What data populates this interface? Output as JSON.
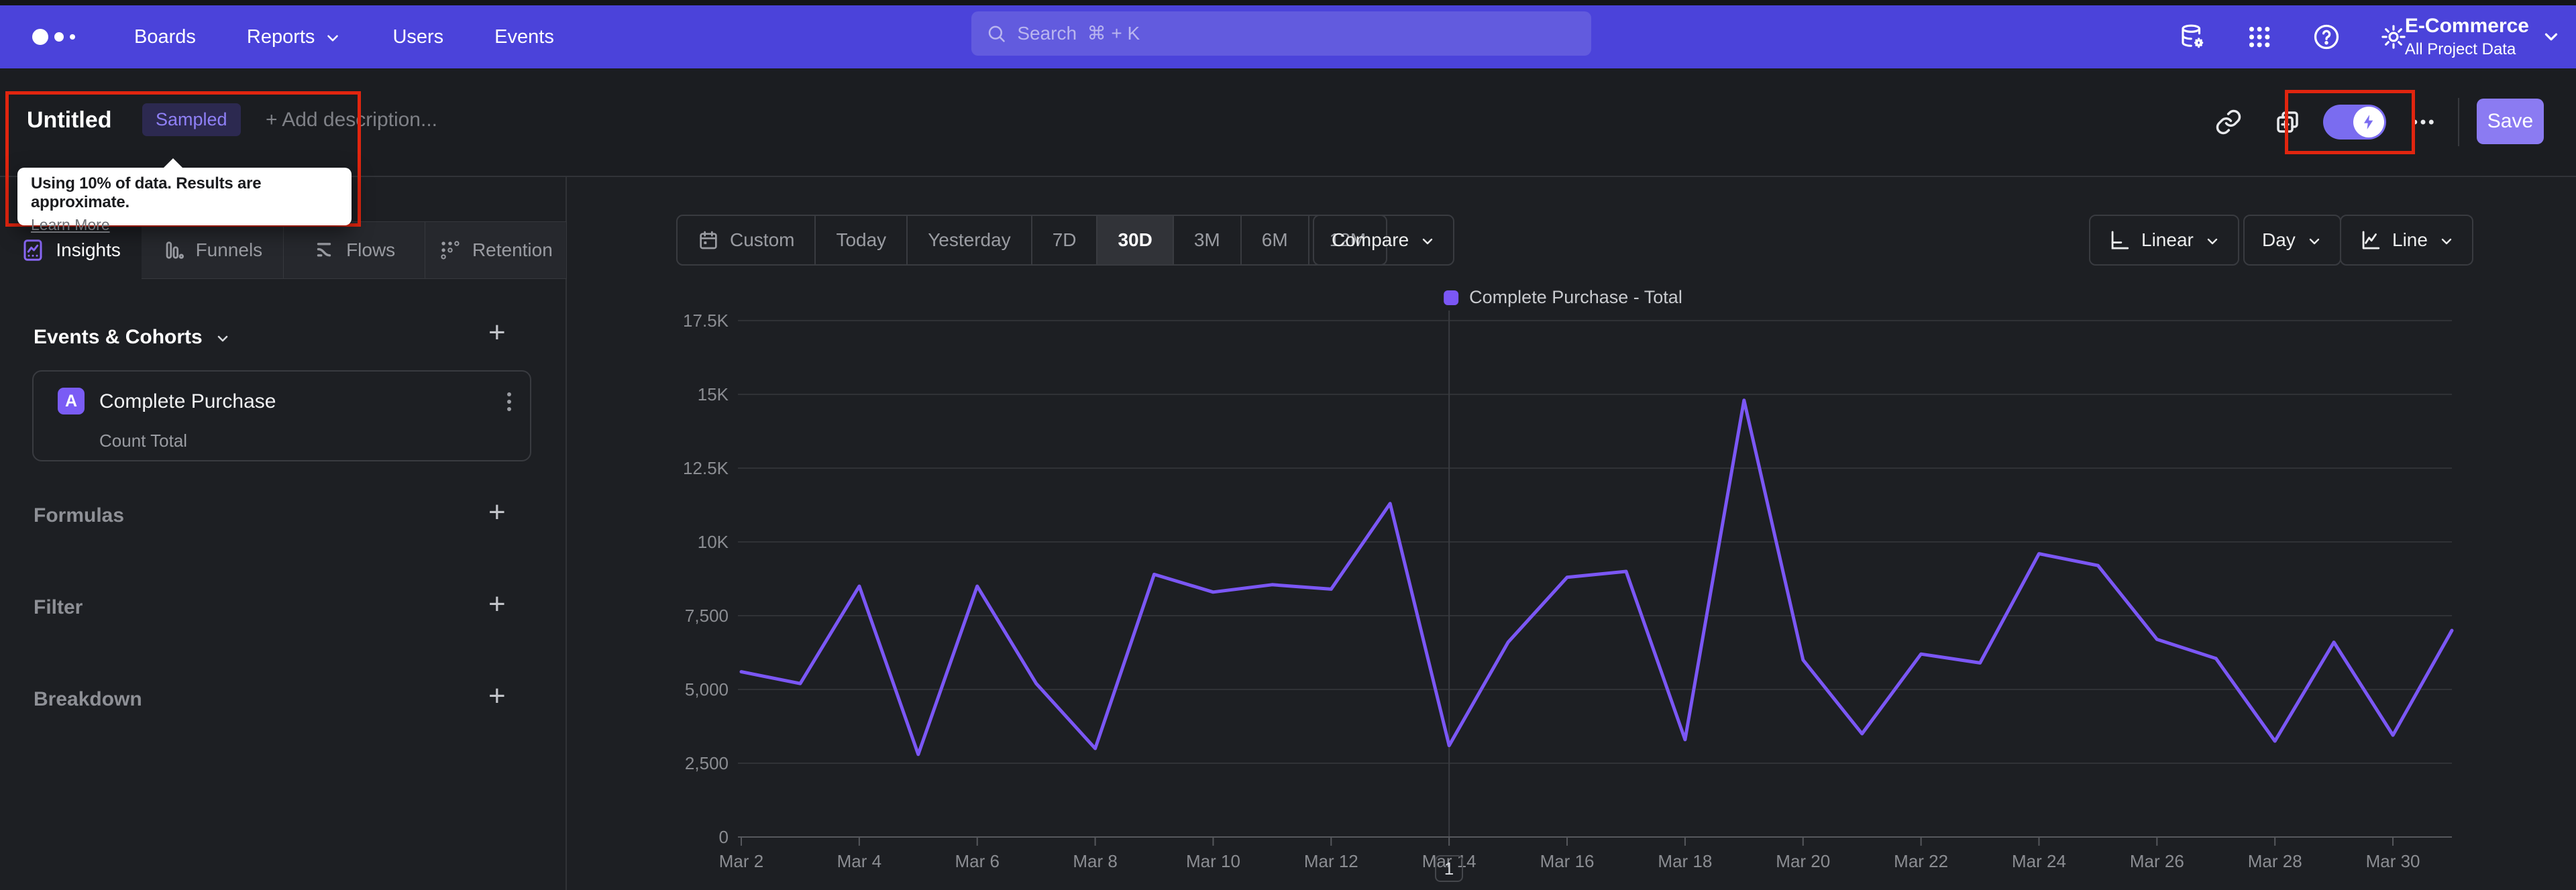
{
  "nav": {
    "items": [
      "Boards",
      "Reports",
      "Users",
      "Events"
    ],
    "search_placeholder": "Search  ⌘ + K",
    "org": {
      "name": "E-Commerce",
      "project": "All Project Data"
    }
  },
  "titlebar": {
    "title": "Untitled",
    "badge": "Sampled",
    "add_description": "+ Add description...",
    "save_label": "Save",
    "tooltip": {
      "text": "Using 10% of data. Results are approximate.",
      "link": "Learn More"
    }
  },
  "sidebar": {
    "tabs": [
      {
        "label": "Insights",
        "active": true
      },
      {
        "label": "Funnels",
        "active": false
      },
      {
        "label": "Flows",
        "active": false
      },
      {
        "label": "Retention",
        "active": false
      }
    ],
    "events_header": "Events & Cohorts",
    "event_card": {
      "letter": "A",
      "name": "Complete Purchase",
      "metric": "Count Total"
    },
    "sections": [
      "Formulas",
      "Filter",
      "Breakdown"
    ]
  },
  "controls": {
    "ranges": [
      "Custom",
      "Today",
      "Yesterday",
      "7D",
      "30D",
      "3M",
      "6M",
      "12M"
    ],
    "active_range": "30D",
    "compare": "Compare",
    "scale": "Linear",
    "granularity": "Day",
    "chart_type": "Line"
  },
  "pagination": "1",
  "colors": {
    "nav_bg": "#4b43da",
    "accent_purple": "#7b57f5",
    "save_button": "#8b7bf2",
    "annotation_red": "#e1250f",
    "page_bg": "#1d1f23"
  },
  "chart_data": {
    "type": "line",
    "legend": "Complete Purchase - Total",
    "series_color": "#7b57f5",
    "x": [
      "Mar 2",
      "Mar 3",
      "Mar 4",
      "Mar 5",
      "Mar 6",
      "Mar 7",
      "Mar 8",
      "Mar 9",
      "Mar 10",
      "Mar 11",
      "Mar 12",
      "Mar 13",
      "Mar 14",
      "Mar 15",
      "Mar 16",
      "Mar 17",
      "Mar 18",
      "Mar 19",
      "Mar 20",
      "Mar 21",
      "Mar 22",
      "Mar 23",
      "Mar 24",
      "Mar 25",
      "Mar 26",
      "Mar 27",
      "Mar 28",
      "Mar 29",
      "Mar 30",
      "Mar 31"
    ],
    "values": [
      5600,
      5200,
      8500,
      2800,
      8500,
      5200,
      3000,
      8900,
      8300,
      8550,
      8400,
      11300,
      3100,
      6600,
      8800,
      9000,
      3300,
      14800,
      6000,
      3500,
      6200,
      5900,
      9600,
      9200,
      6700,
      6050,
      3250,
      6600,
      3450,
      7000
    ],
    "y_ticks": [
      "0",
      "2,500",
      "5,000",
      "7,500",
      "10K",
      "12.5K",
      "15K",
      "17.5K"
    ],
    "ylim": [
      0,
      17500
    ],
    "x_label_every": 2,
    "vline_index": 12,
    "grid": true,
    "legend_position": "top-center"
  }
}
